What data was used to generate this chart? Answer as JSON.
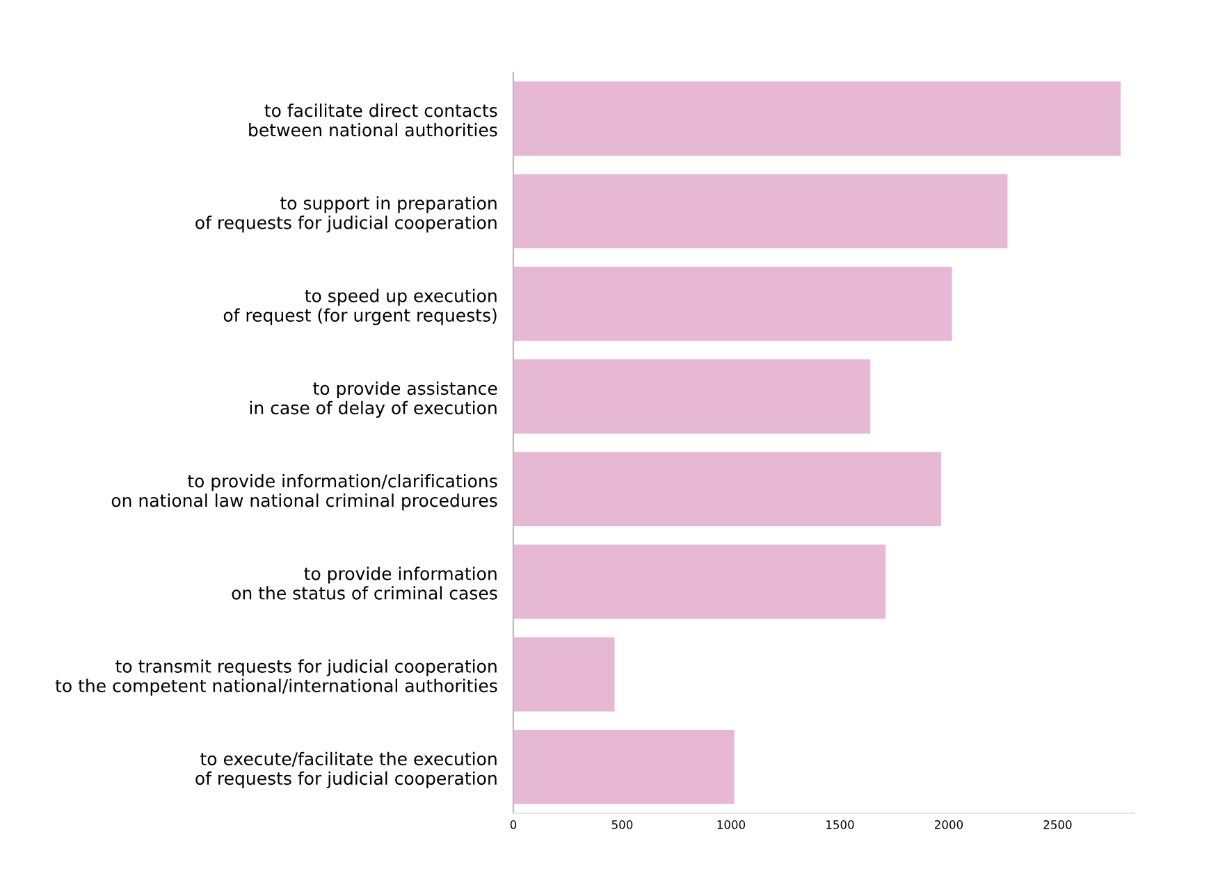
{
  "chart_data": {
    "type": "bar",
    "orientation": "horizontal",
    "categories": [
      "to facilitate direct contacts\nbetween national authorities",
      "to support in preparation\nof requests for judicial cooperation",
      "to speed up execution\nof request (for urgent requests)",
      "to provide assistance\nin case of delay of execution",
      "to provide information/clarifications\non national law national criminal procedures",
      "to provide information\non the status of criminal cases",
      "to transmit requests for judicial cooperation\nto the competent national/international authorities",
      "to execute/facilitate the execution\nof requests for judicial cooperation"
    ],
    "values": [
      2790,
      2270,
      2015,
      1640,
      1965,
      1710,
      465,
      1015
    ],
    "color": "#e6b8d4",
    "xlim": [
      0,
      2850
    ],
    "xticks": [
      0,
      500,
      1000,
      1500,
      2000,
      2500
    ],
    "grid": false,
    "legend": false
  }
}
